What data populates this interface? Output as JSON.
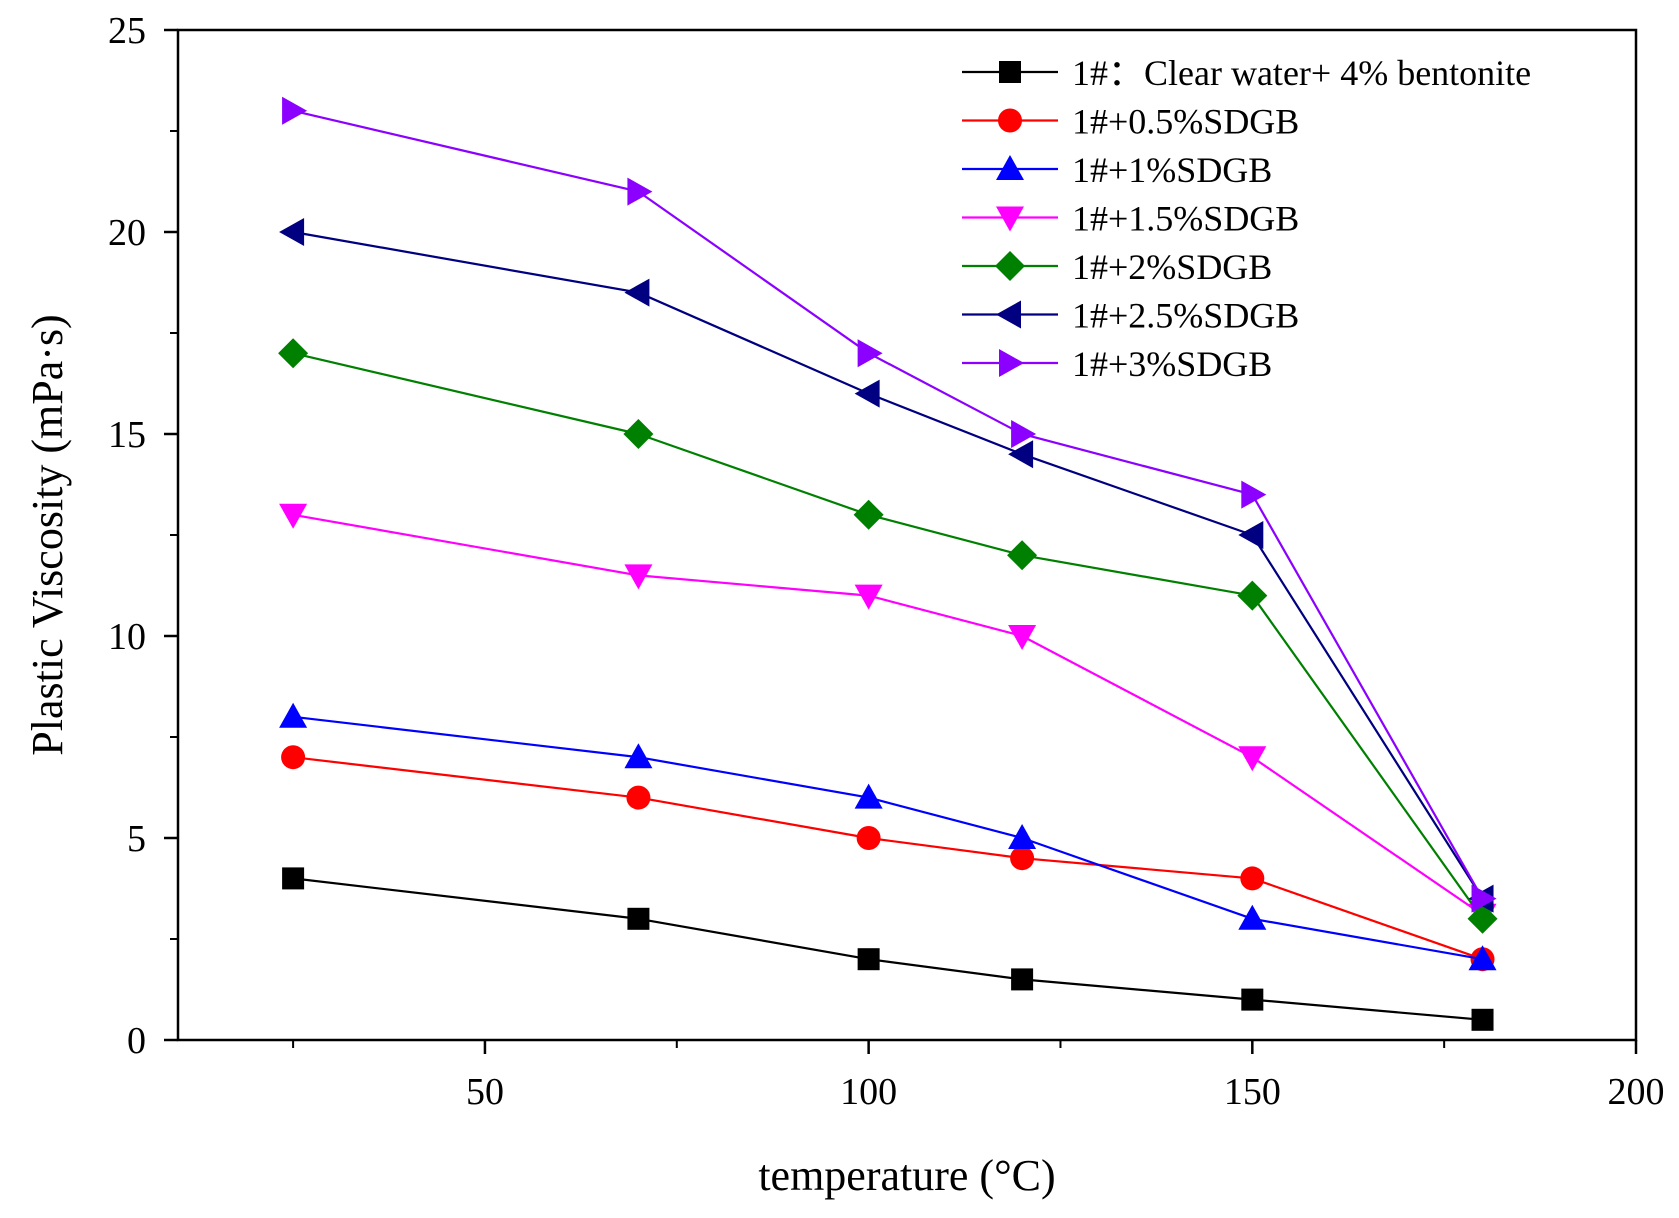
{
  "chart_data": {
    "type": "line",
    "title": "",
    "xlabel": "temperature (°C)",
    "ylabel": "Plastic Viscosity (mPa·s)",
    "xlim": [
      10,
      200
    ],
    "ylim": [
      0,
      25
    ],
    "xticks": [
      50,
      100,
      150,
      200
    ],
    "xminor": [
      25,
      75,
      125,
      175
    ],
    "yticks": [
      0,
      5,
      10,
      15,
      20,
      25
    ],
    "yminor": [
      2.5,
      7.5,
      12.5,
      17.5,
      22.5
    ],
    "legend_position": "top-right",
    "x": [
      25,
      70,
      100,
      120,
      150,
      180
    ],
    "series": [
      {
        "name": "1#：Clear water+ 4% bentonite",
        "color": "#000000",
        "marker": "square",
        "values": [
          4,
          3,
          2,
          1.5,
          1,
          0.5
        ]
      },
      {
        "name": "1#+0.5%SDGB",
        "color": "#ff0000",
        "marker": "circle",
        "values": [
          7,
          6,
          5,
          4.5,
          4,
          2
        ]
      },
      {
        "name": "1#+1%SDGB",
        "color": "#0000ff",
        "marker": "triangle-up",
        "values": [
          8,
          7,
          6,
          5,
          3,
          2
        ]
      },
      {
        "name": "1#+1.5%SDGB",
        "color": "#ff00ff",
        "marker": "triangle-down",
        "values": [
          13,
          11.5,
          11,
          10,
          7,
          3.1
        ]
      },
      {
        "name": "1#+2%SDGB",
        "color": "#008000",
        "marker": "diamond",
        "values": [
          17,
          15,
          13,
          12,
          11,
          3
        ]
      },
      {
        "name": "1#+2.5%SDGB",
        "color": "#000080",
        "marker": "triangle-left",
        "values": [
          20,
          18.5,
          16,
          14.5,
          12.5,
          3.5
        ]
      },
      {
        "name": "1#+3%SDGB",
        "color": "#8b00ff",
        "marker": "triangle-right",
        "values": [
          23,
          21,
          17,
          15,
          13.5,
          3.5
        ]
      }
    ]
  }
}
